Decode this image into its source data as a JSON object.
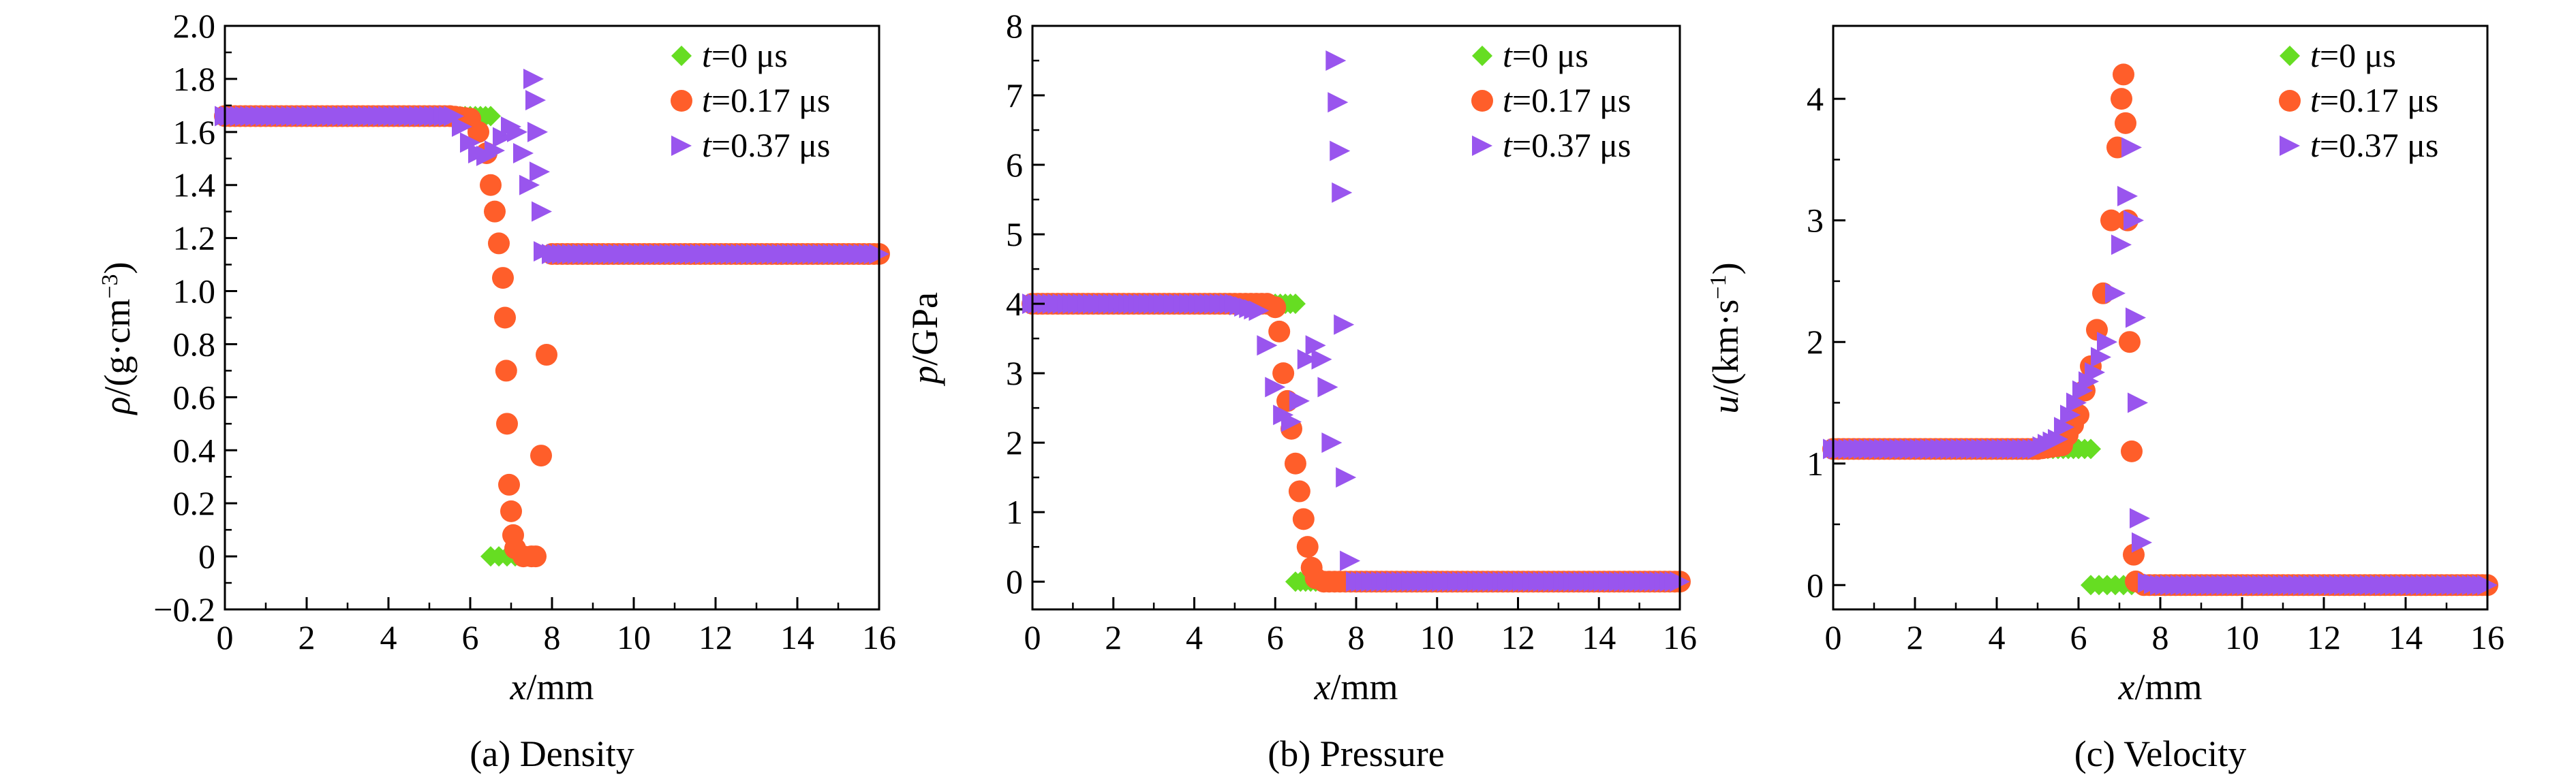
{
  "figure": {
    "panels": [
      {
        "caption": "(a) Density",
        "ylabel_symbol": "ρ",
        "ylabel_pre": "/(g·cm",
        "ylabel_sup": "−3",
        "ylabel_post": ")"
      },
      {
        "caption": "(b) Pressure",
        "ylabel_symbol": "p",
        "ylabel_pre": "/GPa",
        "ylabel_sup": "",
        "ylabel_post": ""
      },
      {
        "caption": "(c) Velocity",
        "ylabel_symbol": "u",
        "ylabel_pre": "/(km·s",
        "ylabel_sup": "−1",
        "ylabel_post": ")"
      }
    ],
    "xlabel_symbol": "x",
    "xlabel_unit": "/mm",
    "legend": [
      {
        "var": "t",
        "value": "=0 μs",
        "color": "#66dd22",
        "marker": "diamond"
      },
      {
        "var": "t",
        "value": "=0.17 μs",
        "color": "#ff5e2a",
        "marker": "circle"
      },
      {
        "var": "t",
        "value": "=0.37 μs",
        "color": "#9955ee",
        "marker": "triangle-right"
      }
    ]
  },
  "chart_data": [
    {
      "type": "scatter",
      "title": "(a) Density",
      "xlabel": "x/mm",
      "ylabel": "ρ/(g·cm−3)",
      "xlim": [
        0,
        16
      ],
      "ylim": [
        -0.2,
        2.0
      ],
      "xticks": [
        0,
        2,
        4,
        6,
        8,
        10,
        12,
        14,
        16
      ],
      "yticks": [
        -0.2,
        0,
        0.2,
        0.4,
        0.6,
        0.8,
        1.0,
        1.2,
        1.4,
        1.6,
        1.8,
        2.0
      ],
      "ytick_labels": [
        "−0.2",
        "0",
        "0.2",
        "0.4",
        "0.6",
        "0.8",
        "1.0",
        "1.2",
        "1.4",
        "1.6",
        "1.8",
        "2.0"
      ],
      "grid": false,
      "legend_position": "top-right",
      "series": [
        {
          "name": "t=0 μs",
          "color": "#66dd22",
          "marker": "diamond",
          "points": [
            [
              0,
              1.66
            ],
            [
              1,
              1.66
            ],
            [
              2,
              1.66
            ],
            [
              3,
              1.66
            ],
            [
              4,
              1.66
            ],
            [
              5,
              1.66
            ],
            [
              6,
              1.66
            ],
            [
              6.5,
              1.66
            ],
            [
              6.5,
              0
            ],
            [
              6.7,
              0
            ],
            [
              6.9,
              0
            ],
            [
              7.1,
              0
            ],
            [
              7.3,
              0
            ],
            [
              7.5,
              0
            ]
          ]
        },
        {
          "name": "t=0.17 μs",
          "color": "#ff5e2a",
          "marker": "circle",
          "points": [
            [
              0,
              1.66
            ],
            [
              1,
              1.66
            ],
            [
              2,
              1.66
            ],
            [
              3,
              1.66
            ],
            [
              4,
              1.66
            ],
            [
              5,
              1.66
            ],
            [
              5.5,
              1.66
            ],
            [
              6,
              1.65
            ],
            [
              6.2,
              1.6
            ],
            [
              6.4,
              1.52
            ],
            [
              6.5,
              1.4
            ],
            [
              6.6,
              1.3
            ],
            [
              6.7,
              1.18
            ],
            [
              6.8,
              1.05
            ],
            [
              6.85,
              0.9
            ],
            [
              6.88,
              0.7
            ],
            [
              6.9,
              0.5
            ],
            [
              6.95,
              0.27
            ],
            [
              7.0,
              0.17
            ],
            [
              7.05,
              0.08
            ],
            [
              7.1,
              0.03
            ],
            [
              7.3,
              0
            ],
            [
              7.5,
              0
            ],
            [
              7.6,
              0
            ],
            [
              8,
              1.14
            ],
            [
              9,
              1.14
            ],
            [
              10,
              1.14
            ],
            [
              11,
              1.14
            ],
            [
              12,
              1.14
            ],
            [
              13,
              1.14
            ],
            [
              14,
              1.14
            ],
            [
              15,
              1.14
            ],
            [
              16,
              1.14
            ]
          ]
        },
        {
          "name": "t=0.37 μs",
          "color": "#9955ee",
          "marker": "triangle-right",
          "points": [
            [
              0,
              1.66
            ],
            [
              1,
              1.66
            ],
            [
              2,
              1.66
            ],
            [
              3,
              1.66
            ],
            [
              4,
              1.66
            ],
            [
              5,
              1.66
            ],
            [
              5.6,
              1.66
            ],
            [
              5.8,
              1.62
            ],
            [
              6,
              1.56
            ],
            [
              6.2,
              1.52
            ],
            [
              6.4,
              1.51
            ],
            [
              6.6,
              1.53
            ],
            [
              6.8,
              1.58
            ],
            [
              7.0,
              1.62
            ],
            [
              7.15,
              1.6
            ],
            [
              7.3,
              1.52
            ],
            [
              7.45,
              1.4
            ],
            [
              7.55,
              1.8
            ],
            [
              7.6,
              1.72
            ],
            [
              7.65,
              1.6
            ],
            [
              7.7,
              1.45
            ],
            [
              7.75,
              1.3
            ],
            [
              7.8,
              1.15
            ],
            [
              8,
              1.14
            ],
            [
              9,
              1.14
            ],
            [
              10,
              1.14
            ],
            [
              11,
              1.14
            ],
            [
              12,
              1.14
            ],
            [
              13,
              1.14
            ],
            [
              14,
              1.14
            ],
            [
              15,
              1.14
            ],
            [
              16,
              1.14
            ]
          ]
        }
      ]
    },
    {
      "type": "scatter",
      "title": "(b) Pressure",
      "xlabel": "x/mm",
      "ylabel": "p/GPa",
      "xlim": [
        0,
        16
      ],
      "ylim": [
        -0.4,
        8.0
      ],
      "xticks": [
        0,
        2,
        4,
        6,
        8,
        10,
        12,
        14,
        16
      ],
      "yticks": [
        0,
        1,
        2,
        3,
        4,
        5,
        6,
        7,
        8
      ],
      "ytick_labels": [
        "0",
        "1",
        "2",
        "3",
        "4",
        "5",
        "6",
        "7",
        "8"
      ],
      "grid": false,
      "legend_position": "top-right",
      "series": [
        {
          "name": "t=0 μs",
          "color": "#66dd22",
          "marker": "diamond",
          "points": [
            [
              0,
              4
            ],
            [
              1,
              4
            ],
            [
              2,
              4
            ],
            [
              3,
              4
            ],
            [
              4,
              4
            ],
            [
              5,
              4
            ],
            [
              6,
              4
            ],
            [
              6.5,
              4
            ],
            [
              6.5,
              0
            ],
            [
              7,
              0
            ],
            [
              8,
              0
            ],
            [
              9,
              0
            ],
            [
              10,
              0
            ],
            [
              11,
              0
            ],
            [
              12,
              0
            ],
            [
              13,
              0
            ],
            [
              14,
              0
            ],
            [
              15,
              0
            ],
            [
              16,
              0
            ]
          ]
        },
        {
          "name": "t=0.17 μs",
          "color": "#ff5e2a",
          "marker": "circle",
          "points": [
            [
              0,
              4
            ],
            [
              1,
              4
            ],
            [
              2,
              4
            ],
            [
              3,
              4
            ],
            [
              4,
              4
            ],
            [
              5,
              4
            ],
            [
              5.8,
              4
            ],
            [
              6.0,
              3.95
            ],
            [
              6.1,
              3.6
            ],
            [
              6.2,
              3.0
            ],
            [
              6.3,
              2.6
            ],
            [
              6.4,
              2.2
            ],
            [
              6.5,
              1.7
            ],
            [
              6.6,
              1.3
            ],
            [
              6.7,
              0.9
            ],
            [
              6.8,
              0.5
            ],
            [
              6.9,
              0.2
            ],
            [
              7.0,
              0.05
            ],
            [
              7.2,
              0
            ],
            [
              8,
              0
            ],
            [
              9,
              0
            ],
            [
              10,
              0
            ],
            [
              11,
              0
            ],
            [
              12,
              0
            ],
            [
              13,
              0
            ],
            [
              14,
              0
            ],
            [
              15,
              0
            ],
            [
              16,
              0
            ]
          ]
        },
        {
          "name": "t=0.37 μs",
          "color": "#9955ee",
          "marker": "triangle-right",
          "points": [
            [
              0,
              4
            ],
            [
              1,
              4
            ],
            [
              2,
              4
            ],
            [
              3,
              4
            ],
            [
              4,
              4
            ],
            [
              5,
              4
            ],
            [
              5.6,
              3.9
            ],
            [
              5.8,
              3.4
            ],
            [
              6.0,
              2.8
            ],
            [
              6.2,
              2.4
            ],
            [
              6.4,
              2.3
            ],
            [
              6.6,
              2.6
            ],
            [
              6.8,
              3.2
            ],
            [
              7.0,
              3.4
            ],
            [
              7.15,
              3.2
            ],
            [
              7.3,
              2.8
            ],
            [
              7.4,
              2.0
            ],
            [
              7.5,
              7.5
            ],
            [
              7.55,
              6.9
            ],
            [
              7.6,
              6.2
            ],
            [
              7.65,
              5.6
            ],
            [
              7.7,
              3.7
            ],
            [
              7.75,
              1.5
            ],
            [
              7.85,
              0.3
            ],
            [
              8,
              0
            ],
            [
              9,
              0
            ],
            [
              10,
              0
            ],
            [
              11,
              0
            ],
            [
              12,
              0
            ],
            [
              13,
              0
            ],
            [
              14,
              0
            ],
            [
              15,
              0
            ],
            [
              16,
              0
            ]
          ]
        }
      ]
    },
    {
      "type": "scatter",
      "title": "(c) Velocity",
      "xlabel": "x/mm",
      "ylabel": "u/(km·s−1)",
      "xlim": [
        0,
        16
      ],
      "ylim": [
        -0.2,
        4.6
      ],
      "xticks": [
        0,
        2,
        4,
        6,
        8,
        10,
        12,
        14,
        16
      ],
      "yticks": [
        0,
        1,
        2,
        3,
        4
      ],
      "ytick_labels": [
        "0",
        "1",
        "2",
        "3",
        "4"
      ],
      "grid": false,
      "legend_position": "top-right",
      "series": [
        {
          "name": "t=0 μs",
          "color": "#66dd22",
          "marker": "diamond",
          "points": [
            [
              0,
              1.12
            ],
            [
              1,
              1.12
            ],
            [
              2,
              1.12
            ],
            [
              3,
              1.12
            ],
            [
              4,
              1.12
            ],
            [
              5,
              1.12
            ],
            [
              6,
              1.12
            ],
            [
              6.3,
              1.12
            ],
            [
              6.3,
              0
            ],
            [
              6.5,
              0
            ],
            [
              6.7,
              0
            ],
            [
              6.9,
              0
            ],
            [
              7.1,
              0
            ],
            [
              7.3,
              0
            ],
            [
              7.5,
              0
            ]
          ]
        },
        {
          "name": "t=0.17 μs",
          "color": "#ff5e2a",
          "marker": "circle",
          "points": [
            [
              0,
              1.12
            ],
            [
              1,
              1.12
            ],
            [
              2,
              1.12
            ],
            [
              3,
              1.12
            ],
            [
              4,
              1.12
            ],
            [
              5,
              1.12
            ],
            [
              5.6,
              1.15
            ],
            [
              6.0,
              1.4
            ],
            [
              6.3,
              1.8
            ],
            [
              6.6,
              2.4
            ],
            [
              6.8,
              3.0
            ],
            [
              6.95,
              3.6
            ],
            [
              7.05,
              4.0
            ],
            [
              7.1,
              4.2
            ],
            [
              7.15,
              3.8
            ],
            [
              7.2,
              3.0
            ],
            [
              7.25,
              2.0
            ],
            [
              7.3,
              1.1
            ],
            [
              7.35,
              0.25
            ],
            [
              7.4,
              0.03
            ],
            [
              7.6,
              0
            ],
            [
              8,
              0
            ],
            [
              9,
              0
            ],
            [
              10,
              0
            ],
            [
              11,
              0
            ],
            [
              12,
              0
            ],
            [
              13,
              0
            ],
            [
              14,
              0
            ],
            [
              15,
              0
            ],
            [
              16,
              0
            ]
          ]
        },
        {
          "name": "t=0.37 μs",
          "color": "#9955ee",
          "marker": "triangle-right",
          "points": [
            [
              0,
              1.12
            ],
            [
              1,
              1.12
            ],
            [
              2,
              1.12
            ],
            [
              3,
              1.12
            ],
            [
              4,
              1.12
            ],
            [
              5,
              1.12
            ],
            [
              5.5,
              1.2
            ],
            [
              5.8,
              1.4
            ],
            [
              6.1,
              1.6
            ],
            [
              6.4,
              1.75
            ],
            [
              6.7,
              2.0
            ],
            [
              6.9,
              2.4
            ],
            [
              7.05,
              2.8
            ],
            [
              7.2,
              3.2
            ],
            [
              7.3,
              3.6
            ],
            [
              7.35,
              3.0
            ],
            [
              7.4,
              2.2
            ],
            [
              7.45,
              1.5
            ],
            [
              7.5,
              0.55
            ],
            [
              7.55,
              0.35
            ],
            [
              7.7,
              0.02
            ],
            [
              8,
              0
            ],
            [
              9,
              0
            ],
            [
              10,
              0
            ],
            [
              11,
              0
            ],
            [
              12,
              0
            ],
            [
              13,
              0
            ],
            [
              14,
              0
            ],
            [
              15,
              0
            ],
            [
              16,
              0
            ]
          ]
        }
      ]
    }
  ]
}
